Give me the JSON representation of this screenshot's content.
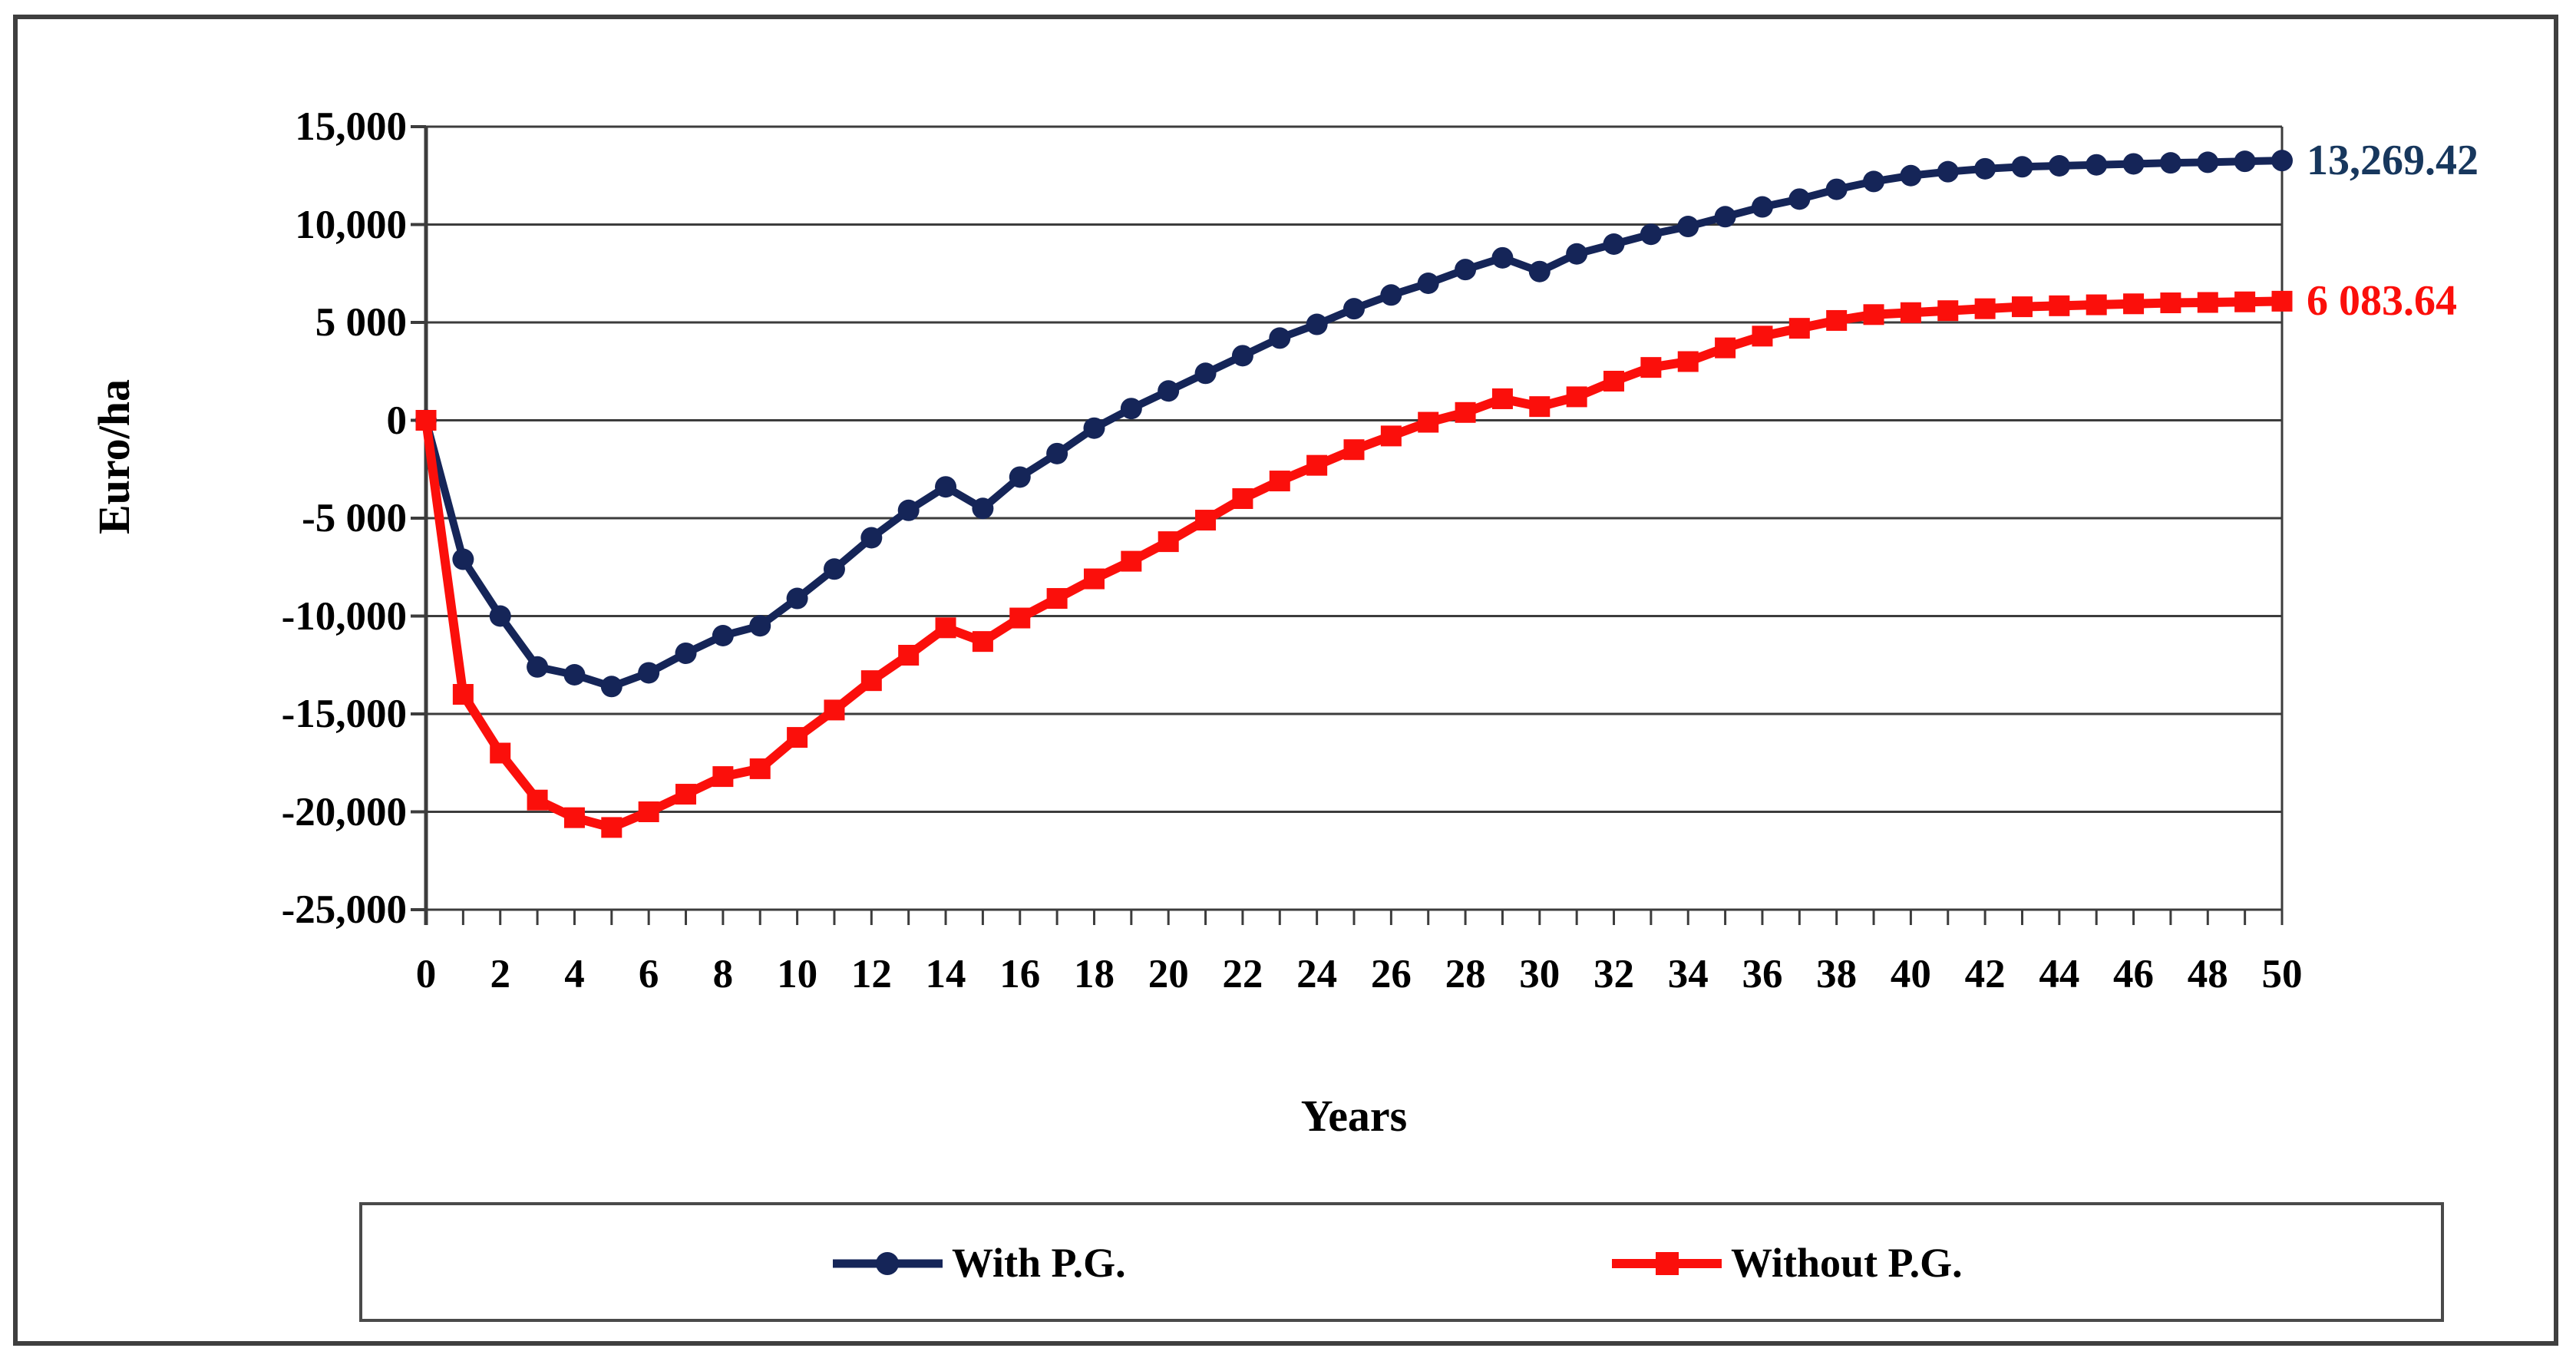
{
  "figure": {
    "background": "#FFFFFF",
    "outer_border_color": "#3F3F3F",
    "gridline_color": "#3C3C3C",
    "text_color": "#000000"
  },
  "chart_data": {
    "type": "line",
    "title": "",
    "xlabel": "Years",
    "ylabel": "Euro/ha",
    "xlim": [
      0,
      50
    ],
    "ylim": [
      -25000,
      15000
    ],
    "grid": true,
    "legend_position": "bottom",
    "x": [
      0,
      1,
      2,
      3,
      4,
      5,
      6,
      7,
      8,
      9,
      10,
      11,
      12,
      13,
      14,
      15,
      16,
      17,
      18,
      19,
      20,
      21,
      22,
      23,
      24,
      25,
      26,
      27,
      28,
      29,
      30,
      31,
      32,
      33,
      34,
      35,
      36,
      37,
      38,
      39,
      40,
      41,
      42,
      43,
      44,
      45,
      46,
      47,
      48,
      49,
      50
    ],
    "x_tick_labels": [
      "0",
      "2",
      "4",
      "6",
      "8",
      "10",
      "12",
      "14",
      "16",
      "18",
      "20",
      "22",
      "24",
      "26",
      "28",
      "30",
      "32",
      "34",
      "36",
      "38",
      "40",
      "42",
      "44",
      "46",
      "48",
      "50"
    ],
    "x_tick_values": [
      0,
      2,
      4,
      6,
      8,
      10,
      12,
      14,
      16,
      18,
      20,
      22,
      24,
      26,
      28,
      30,
      32,
      34,
      36,
      38,
      40,
      42,
      44,
      46,
      48,
      50
    ],
    "x_minor_tick_step": 1,
    "y_tick_labels": [
      "15,000",
      "10,000",
      "5 000",
      "0",
      "-5 000",
      "-10,000",
      "-15,000",
      "-20,000",
      "-25,000"
    ],
    "y_tick_values": [
      15000,
      10000,
      5000,
      0,
      -5000,
      -10000,
      -15000,
      -20000,
      -25000
    ],
    "series": [
      {
        "name": "With P.G.",
        "color": "#152558",
        "marker": "circle",
        "end_label": "13,269.42",
        "end_label_color": "#17375D",
        "values": [
          0,
          -7100,
          -10000,
          -12600,
          -13000,
          -13600,
          -12900,
          -11900,
          -11000,
          -10500,
          -9100,
          -7600,
          -6000,
          -4600,
          -3400,
          -4500,
          -2900,
          -1700,
          -400,
          600,
          1500,
          2400,
          3300,
          4200,
          4900,
          5700,
          6400,
          7000,
          7700,
          8300,
          7600,
          8500,
          9000,
          9500,
          9900,
          10400,
          10900,
          11300,
          11800,
          12200,
          12500,
          12700,
          12850,
          12950,
          13000,
          13050,
          13100,
          13150,
          13180,
          13230,
          13269.42
        ]
      },
      {
        "name": "Without P.G.",
        "color": "#FB0F0B",
        "marker": "square",
        "end_label": "6 083.64",
        "end_label_color": "#FB0F0B",
        "values": [
          0,
          -14000,
          -17000,
          -19400,
          -20300,
          -20800,
          -20000,
          -19100,
          -18200,
          -17800,
          -16200,
          -14800,
          -13300,
          -12000,
          -10600,
          -11300,
          -10100,
          -9100,
          -8100,
          -7200,
          -6200,
          -5100,
          -4000,
          -3100,
          -2300,
          -1500,
          -800,
          -100,
          400,
          1100,
          700,
          1200,
          2000,
          2700,
          3000,
          3700,
          4300,
          4700,
          5100,
          5400,
          5500,
          5600,
          5700,
          5800,
          5850,
          5900,
          5950,
          6000,
          6020,
          6050,
          6083.64
        ]
      }
    ]
  },
  "labels": {
    "ylabel": "Euro/ha",
    "xlabel": "Years",
    "end_with_pg": "13,269.42",
    "end_without_pg": "6 083.64",
    "legend_with_pg": "With P.G.",
    "legend_without_pg": "Without P.G."
  }
}
